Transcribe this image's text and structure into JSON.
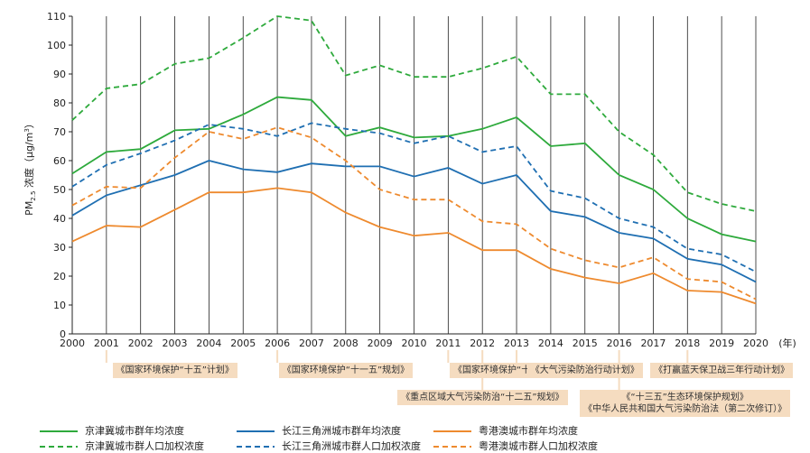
{
  "chart_data": {
    "type": "line",
    "x": [
      2000,
      2001,
      2002,
      2003,
      2004,
      2005,
      2006,
      2007,
      2008,
      2009,
      2010,
      2011,
      2012,
      2013,
      2014,
      2015,
      2016,
      2017,
      2018,
      2019,
      2020
    ],
    "xunit": "(年)",
    "ylabel_main": "PM",
    "ylabel_sub": "2.5",
    "ylabel_rest": " 浓度（μg/m",
    "ylabel_sup": "3",
    "ylabel_end": "）",
    "ylim": [
      0,
      110
    ],
    "yticks": [
      0,
      10,
      20,
      30,
      40,
      50,
      60,
      70,
      80,
      90,
      100,
      110
    ],
    "grid": "vertical",
    "series": [
      {
        "name": "京津冀城市群年均浓度",
        "color": "#2eaa3c",
        "style": "solid",
        "values": [
          55.5,
          63,
          64,
          70.5,
          71,
          76,
          82,
          81,
          68.5,
          71.5,
          68,
          68.5,
          71,
          75,
          65,
          66,
          55,
          50,
          40,
          34.5,
          32
        ]
      },
      {
        "name": "京津冀城市群人口加权浓度",
        "color": "#2eaa3c",
        "style": "dashed",
        "values": [
          74,
          85,
          86.5,
          93.5,
          95.5,
          102.5,
          110,
          108.5,
          89.5,
          93,
          89,
          89,
          92,
          96,
          83,
          83,
          70,
          62,
          49,
          45,
          42.5
        ]
      },
      {
        "name": "长江三角洲城市群年均浓度",
        "color": "#1f6fb2",
        "style": "solid",
        "values": [
          41,
          48,
          51.5,
          55,
          60,
          57,
          56,
          59,
          58,
          58,
          54.5,
          57.5,
          52,
          55,
          42.5,
          40.5,
          35,
          33,
          26,
          24,
          18
        ]
      },
      {
        "name": "长江三角洲城市群人口加权浓度",
        "color": "#1f6fb2",
        "style": "dashed",
        "values": [
          51,
          58.5,
          62.5,
          67,
          72.5,
          71,
          68.5,
          73,
          71,
          69.5,
          66,
          68.5,
          63,
          65,
          49.5,
          47,
          40,
          37,
          29.5,
          27.5,
          21.5
        ]
      },
      {
        "name": "粤港澳城市群年均浓度",
        "color": "#ee8a2e",
        "style": "solid",
        "values": [
          32,
          37.5,
          37,
          43,
          49,
          49,
          50.5,
          49,
          42,
          37,
          34,
          35,
          29,
          29,
          22.5,
          19.5,
          17.5,
          21,
          15,
          14.5,
          10.5
        ]
      },
      {
        "name": "粤港澳城市群人口加权浓度",
        "color": "#ee8a2e",
        "style": "dashed",
        "values": [
          44.5,
          51,
          50.5,
          61,
          70,
          67.5,
          71.5,
          68,
          60,
          50,
          46.5,
          46.5,
          39,
          38,
          29.5,
          25.5,
          23,
          26.5,
          19,
          18,
          12
        ]
      }
    ],
    "policies": [
      {
        "label": "《国家环境保护“十五”计划》",
        "from": 2001,
        "to": 2005,
        "row": 1
      },
      {
        "label": "《国家环境保护“十一五”规划》",
        "from": 2006,
        "to": 2010,
        "row": 1
      },
      {
        "label": "《国家环境保护“十二五”规划》",
        "from": 2011,
        "to": 2015,
        "row": 1
      },
      {
        "label": "《大气污染防治行动计划》",
        "from": 2013,
        "to": 2017,
        "row": 1
      },
      {
        "label": "《打赢蓝天保卫战三年行动计划》",
        "from": 2018,
        "to": 2020,
        "row": 1
      },
      {
        "label": "《重点区域大气污染防治“十二五”规划》",
        "from": 2012,
        "to": 2012,
        "row": 2
      },
      {
        "label": "《“十三五”生态环境保护规划》",
        "from": 2016,
        "to": 2016,
        "row": 3,
        "line2": "《中华人民共和国大气污染防治法（第二次修订）》"
      }
    ]
  }
}
